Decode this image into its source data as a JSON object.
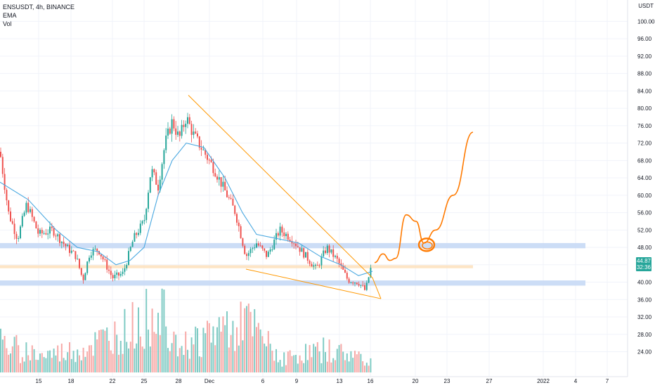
{
  "legend": {
    "symbol": "ENSUSDT, 4h, BINANCE",
    "ema": "EMA",
    "vol": "Vol"
  },
  "currency": "USDT",
  "price_tag": {
    "price": "44.87",
    "countdown": "32:36"
  },
  "colors": {
    "up": "#26a69a",
    "down": "#ef5350",
    "ema": "#4aa8e0",
    "wedge": "#ff9800",
    "projection": "#ff7a00",
    "zone_blue": "#c7d9f5",
    "zone_orange": "#fde2c0",
    "grid": "#f0f3fa",
    "axis_text": "#131722"
  },
  "chart_data": {
    "type": "candlestick",
    "title": "",
    "y_axis": {
      "ticks": [
        "100.00",
        "96.00",
        "92.00",
        "88.00",
        "84.00",
        "80.00",
        "76.00",
        "72.00",
        "68.00",
        "64.00",
        "60.00",
        "56.00",
        "52.00",
        "48.00",
        "44.00",
        "40.00",
        "36.00",
        "32.00",
        "28.00",
        "24.00"
      ],
      "range": [
        21.5,
        102
      ]
    },
    "x_axis": {
      "ticks": [
        "15",
        "18",
        "22",
        "25",
        "28",
        "Dec",
        "6",
        "9",
        "13",
        "16",
        "20",
        "23",
        "27",
        "2022",
        "4",
        "7"
      ]
    },
    "price_key_points": [
      {
        "x": 0,
        "y": 70
      },
      {
        "x": 12,
        "y": 56
      },
      {
        "x": 25,
        "y": 50
      },
      {
        "x": 38,
        "y": 58
      },
      {
        "x": 55,
        "y": 51
      },
      {
        "x": 75,
        "y": 52
      },
      {
        "x": 95,
        "y": 48
      },
      {
        "x": 108,
        "y": 46
      },
      {
        "x": 118,
        "y": 40.5
      },
      {
        "x": 128,
        "y": 47
      },
      {
        "x": 140,
        "y": 47.5
      },
      {
        "x": 160,
        "y": 41
      },
      {
        "x": 175,
        "y": 42
      },
      {
        "x": 190,
        "y": 50
      },
      {
        "x": 205,
        "y": 54
      },
      {
        "x": 215,
        "y": 66
      },
      {
        "x": 225,
        "y": 62
      },
      {
        "x": 235,
        "y": 72
      },
      {
        "x": 245,
        "y": 77
      },
      {
        "x": 255,
        "y": 73
      },
      {
        "x": 265,
        "y": 78
      },
      {
        "x": 275,
        "y": 74
      },
      {
        "x": 290,
        "y": 70
      },
      {
        "x": 305,
        "y": 66
      },
      {
        "x": 320,
        "y": 61
      },
      {
        "x": 335,
        "y": 56
      },
      {
        "x": 350,
        "y": 46
      },
      {
        "x": 365,
        "y": 49
      },
      {
        "x": 380,
        "y": 46
      },
      {
        "x": 398,
        "y": 52
      },
      {
        "x": 415,
        "y": 50
      },
      {
        "x": 430,
        "y": 47
      },
      {
        "x": 450,
        "y": 43
      },
      {
        "x": 465,
        "y": 48
      },
      {
        "x": 480,
        "y": 45
      },
      {
        "x": 495,
        "y": 40.5
      },
      {
        "x": 510,
        "y": 40
      },
      {
        "x": 520,
        "y": 38
      },
      {
        "x": 530,
        "y": 44.87
      }
    ],
    "ema_key_points": [
      {
        "x": 0,
        "y": 63
      },
      {
        "x": 40,
        "y": 59
      },
      {
        "x": 80,
        "y": 52
      },
      {
        "x": 110,
        "y": 48
      },
      {
        "x": 140,
        "y": 47
      },
      {
        "x": 165,
        "y": 44
      },
      {
        "x": 185,
        "y": 45
      },
      {
        "x": 205,
        "y": 48
      },
      {
        "x": 225,
        "y": 60
      },
      {
        "x": 245,
        "y": 68
      },
      {
        "x": 265,
        "y": 72
      },
      {
        "x": 290,
        "y": 71
      },
      {
        "x": 320,
        "y": 64
      },
      {
        "x": 345,
        "y": 56
      },
      {
        "x": 365,
        "y": 51
      },
      {
        "x": 395,
        "y": 50
      },
      {
        "x": 425,
        "y": 49
      },
      {
        "x": 455,
        "y": 46
      },
      {
        "x": 485,
        "y": 44
      },
      {
        "x": 510,
        "y": 41.5
      },
      {
        "x": 530,
        "y": 42.5
      }
    ],
    "volume_key_points": [
      {
        "x": 0,
        "v": 0.38
      },
      {
        "x": 60,
        "v": 0.22
      },
      {
        "x": 115,
        "v": 0.3
      },
      {
        "x": 180,
        "v": 0.55
      },
      {
        "x": 215,
        "v": 0.75
      },
      {
        "x": 228,
        "v": 0.95
      },
      {
        "x": 260,
        "v": 0.35
      },
      {
        "x": 345,
        "v": 0.7
      },
      {
        "x": 400,
        "v": 0.18
      },
      {
        "x": 460,
        "v": 0.3
      },
      {
        "x": 530,
        "v": 0.18
      }
    ],
    "zones": [
      {
        "name": "upper-support",
        "from": 47.8,
        "to": 49.0,
        "color": "blue"
      },
      {
        "name": "mid-level",
        "from": 43.2,
        "to": 43.9,
        "color": "orange"
      },
      {
        "name": "lower-support",
        "from": 39.2,
        "to": 40.4,
        "color": "blue"
      }
    ],
    "wedge": {
      "upper": [
        {
          "x": 268,
          "y": 83
        },
        {
          "x": 530,
          "y": 41
        }
      ],
      "lower": [
        {
          "x": 350,
          "y": 43
        },
        {
          "x": 542,
          "y": 36.2
        }
      ]
    },
    "projection": [
      {
        "x": 533,
        "y": 44.5
      },
      {
        "x": 545,
        "y": 46.5
      },
      {
        "x": 555,
        "y": 45
      },
      {
        "x": 563,
        "y": 45.5
      },
      {
        "x": 578,
        "y": 55.5
      },
      {
        "x": 592,
        "y": 54
      },
      {
        "x": 603,
        "y": 49
      },
      {
        "x": 620,
        "y": 52
      },
      {
        "x": 645,
        "y": 60
      },
      {
        "x": 673,
        "y": 74.5
      }
    ],
    "highlight_circle": {
      "x": 607,
      "y": 48.6
    }
  }
}
